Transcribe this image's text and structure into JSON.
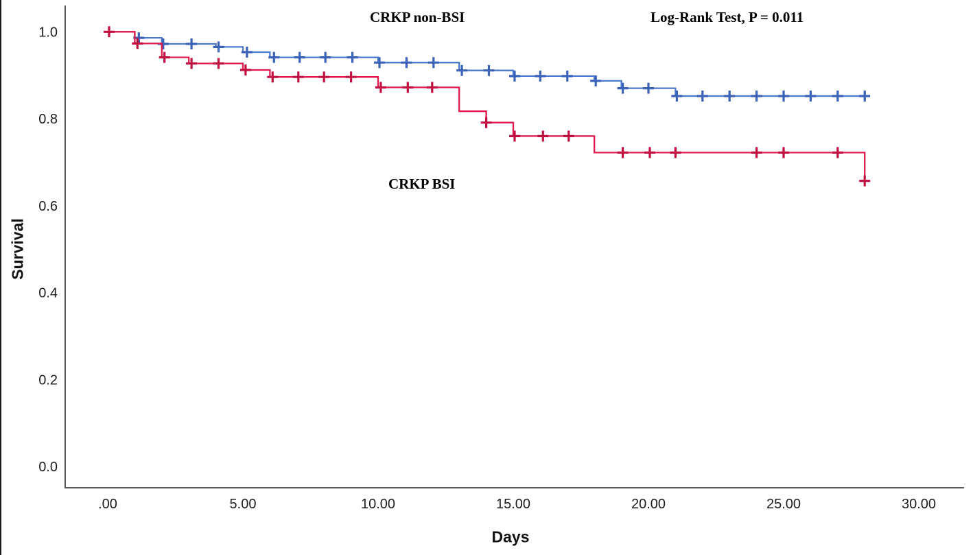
{
  "figure": {
    "ylabel": "Survival",
    "xlabel": "Days",
    "curve_label_top": "CRKP non-BSI",
    "curve_label_bottom": "CRKP BSI",
    "stat_annotation": "Log-Rank Test, P = 0.011"
  },
  "chart_data": {
    "type": "line",
    "subtype": "kaplan_meier_step_function",
    "title": "",
    "xlabel": "Days",
    "ylabel": "Survival",
    "xlim": [
      0,
      30
    ],
    "ylim": [
      0.0,
      1.0
    ],
    "grid": false,
    "legend_position": "none-direct-curve-labels",
    "annotations": [
      "CRKP non-BSI",
      "CRKP BSI",
      "Log-Rank Test, P = 0.011"
    ],
    "x_ticks": [
      {
        "value": 0,
        "label": ".00"
      },
      {
        "value": 5,
        "label": "5.00"
      },
      {
        "value": 10,
        "label": "10.00"
      },
      {
        "value": 15,
        "label": "15.00"
      },
      {
        "value": 20,
        "label": "20.00"
      },
      {
        "value": 25,
        "label": "25.00"
      },
      {
        "value": 30,
        "label": "30.00"
      }
    ],
    "y_ticks": [
      {
        "value": 0.0,
        "label": "0.0"
      },
      {
        "value": 0.2,
        "label": "0.2"
      },
      {
        "value": 0.4,
        "label": "0.4"
      },
      {
        "value": 0.6,
        "label": "0.6"
      },
      {
        "value": 0.8,
        "label": "0.8"
      },
      {
        "value": 1.0,
        "label": "1.0"
      }
    ],
    "axis_color": "#57575a",
    "series": [
      {
        "name": "CRKP non-BSI",
        "line_color": "#4b79ce",
        "censor_color": "#3a62b8",
        "steps": [
          [
            0,
            1.0
          ],
          [
            1,
            0.986
          ],
          [
            2,
            0.972
          ],
          [
            4,
            0.965
          ],
          [
            5,
            0.953
          ],
          [
            6,
            0.941
          ],
          [
            10,
            0.929
          ],
          [
            13,
            0.911
          ],
          [
            15,
            0.898
          ],
          [
            18,
            0.887
          ],
          [
            19,
            0.87
          ],
          [
            21,
            0.852
          ]
        ],
        "end_day": 28.15,
        "censored": [
          [
            1.15,
            0.986
          ],
          [
            2.05,
            0.972
          ],
          [
            3.1,
            0.972
          ],
          [
            4.1,
            0.965
          ],
          [
            5.15,
            0.953
          ],
          [
            6.15,
            0.941
          ],
          [
            7.1,
            0.941
          ],
          [
            8.05,
            0.941
          ],
          [
            9.05,
            0.941
          ],
          [
            10.05,
            0.929
          ],
          [
            11.05,
            0.929
          ],
          [
            12.05,
            0.929
          ],
          [
            13.1,
            0.911
          ],
          [
            14.1,
            0.911
          ],
          [
            15.05,
            0.898
          ],
          [
            16.0,
            0.898
          ],
          [
            17.0,
            0.898
          ],
          [
            18.05,
            0.887
          ],
          [
            19.05,
            0.87
          ],
          [
            20.0,
            0.87
          ],
          [
            21.05,
            0.852
          ],
          [
            22.0,
            0.852
          ],
          [
            23.0,
            0.852
          ],
          [
            24.0,
            0.852
          ],
          [
            25.0,
            0.852
          ],
          [
            26.0,
            0.852
          ],
          [
            27.0,
            0.852
          ],
          [
            28.0,
            0.852
          ]
        ]
      },
      {
        "name": "CRKP BSI",
        "line_color": "#e11a4d",
        "censor_color": "#c01040",
        "steps": [
          [
            0,
            1.0
          ],
          [
            1,
            0.973
          ],
          [
            2,
            0.941
          ],
          [
            3,
            0.927
          ],
          [
            5,
            0.912
          ],
          [
            6,
            0.896
          ],
          [
            10,
            0.872
          ],
          [
            13,
            0.817
          ],
          [
            14,
            0.791
          ],
          [
            15,
            0.76
          ],
          [
            18,
            0.722
          ],
          [
            28,
            0.657
          ]
        ],
        "end_day": 28.05,
        "censored": [
          [
            0.05,
            1.0
          ],
          [
            1.1,
            0.973
          ],
          [
            2.1,
            0.941
          ],
          [
            3.1,
            0.927
          ],
          [
            4.1,
            0.927
          ],
          [
            5.1,
            0.912
          ],
          [
            6.1,
            0.896
          ],
          [
            7.05,
            0.896
          ],
          [
            8.0,
            0.896
          ],
          [
            9.0,
            0.896
          ],
          [
            10.1,
            0.872
          ],
          [
            11.1,
            0.872
          ],
          [
            12.0,
            0.872
          ],
          [
            14.0,
            0.791
          ],
          [
            15.05,
            0.76
          ],
          [
            16.1,
            0.76
          ],
          [
            17.05,
            0.76
          ],
          [
            19.05,
            0.722
          ],
          [
            20.05,
            0.722
          ],
          [
            21.0,
            0.722
          ],
          [
            24.0,
            0.722
          ],
          [
            25.0,
            0.722
          ],
          [
            27.0,
            0.722
          ],
          [
            28.0,
            0.657
          ]
        ]
      }
    ]
  }
}
